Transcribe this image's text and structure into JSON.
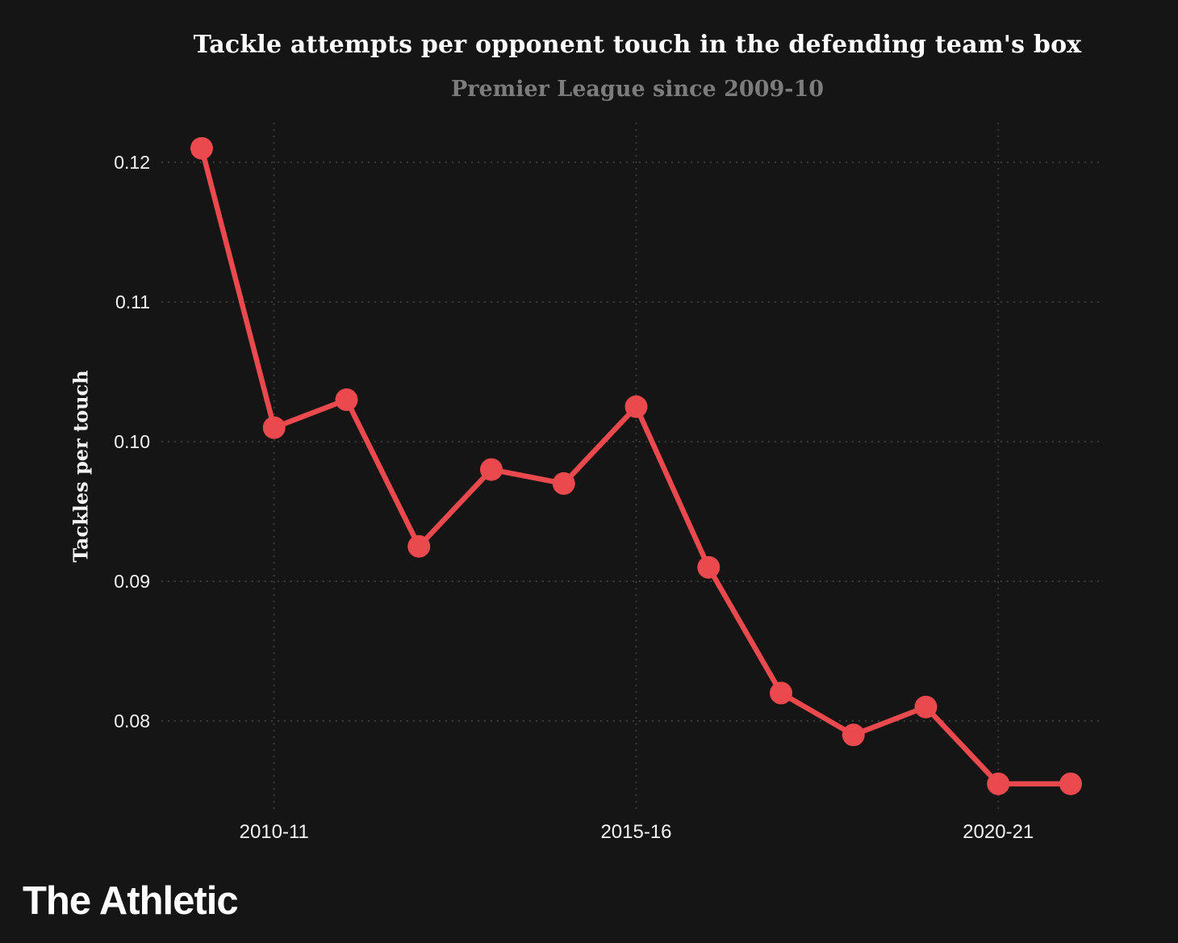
{
  "page": {
    "background": "#151515"
  },
  "header": {
    "title": "Tackle attempts per opponent touch in the defending team's box",
    "subtitle": "Premier League since 2009-10"
  },
  "footer": {
    "brand": "The Athletic"
  },
  "chart_data": {
    "type": "line",
    "title": "Tackle attempts per opponent touch in the defending team's box",
    "subtitle": "Premier League since 2009-10",
    "xlabel": "",
    "ylabel": "Tackles per touch",
    "categories": [
      "2009-10",
      "2010-11",
      "2011-12",
      "2012-13",
      "2013-14",
      "2014-15",
      "2015-16",
      "2016-17",
      "2017-18",
      "2018-19",
      "2019-20",
      "2020-21",
      "2021-22"
    ],
    "series": [
      {
        "name": "Tackle attempts per opponent touch",
        "values": [
          0.121,
          0.101,
          0.103,
          0.0925,
          0.098,
          0.097,
          0.1025,
          0.091,
          0.082,
          0.079,
          0.081,
          0.0755,
          0.0755
        ]
      }
    ],
    "y_ticks": [
      {
        "value": 0.08,
        "label": "0.08"
      },
      {
        "value": 0.09,
        "label": "0.09"
      },
      {
        "value": 0.1,
        "label": "0.10"
      },
      {
        "value": 0.11,
        "label": "0.11"
      },
      {
        "value": 0.12,
        "label": "0.12"
      }
    ],
    "x_ticks": [
      {
        "index": 1,
        "label": "2010-11"
      },
      {
        "index": 6,
        "label": "2015-16"
      },
      {
        "index": 11,
        "label": "2020-21"
      }
    ],
    "ylim": [
      0.0745,
      0.1235
    ],
    "grid": true,
    "legend": "none",
    "colors": {
      "line": "#ea4a4e",
      "marker": "#ea4a4e",
      "grid": "#3c3c3c",
      "tick_text": "#f2f2f2",
      "title_text": "#ffffff",
      "subtitle_text": "#7c7c7c"
    }
  }
}
